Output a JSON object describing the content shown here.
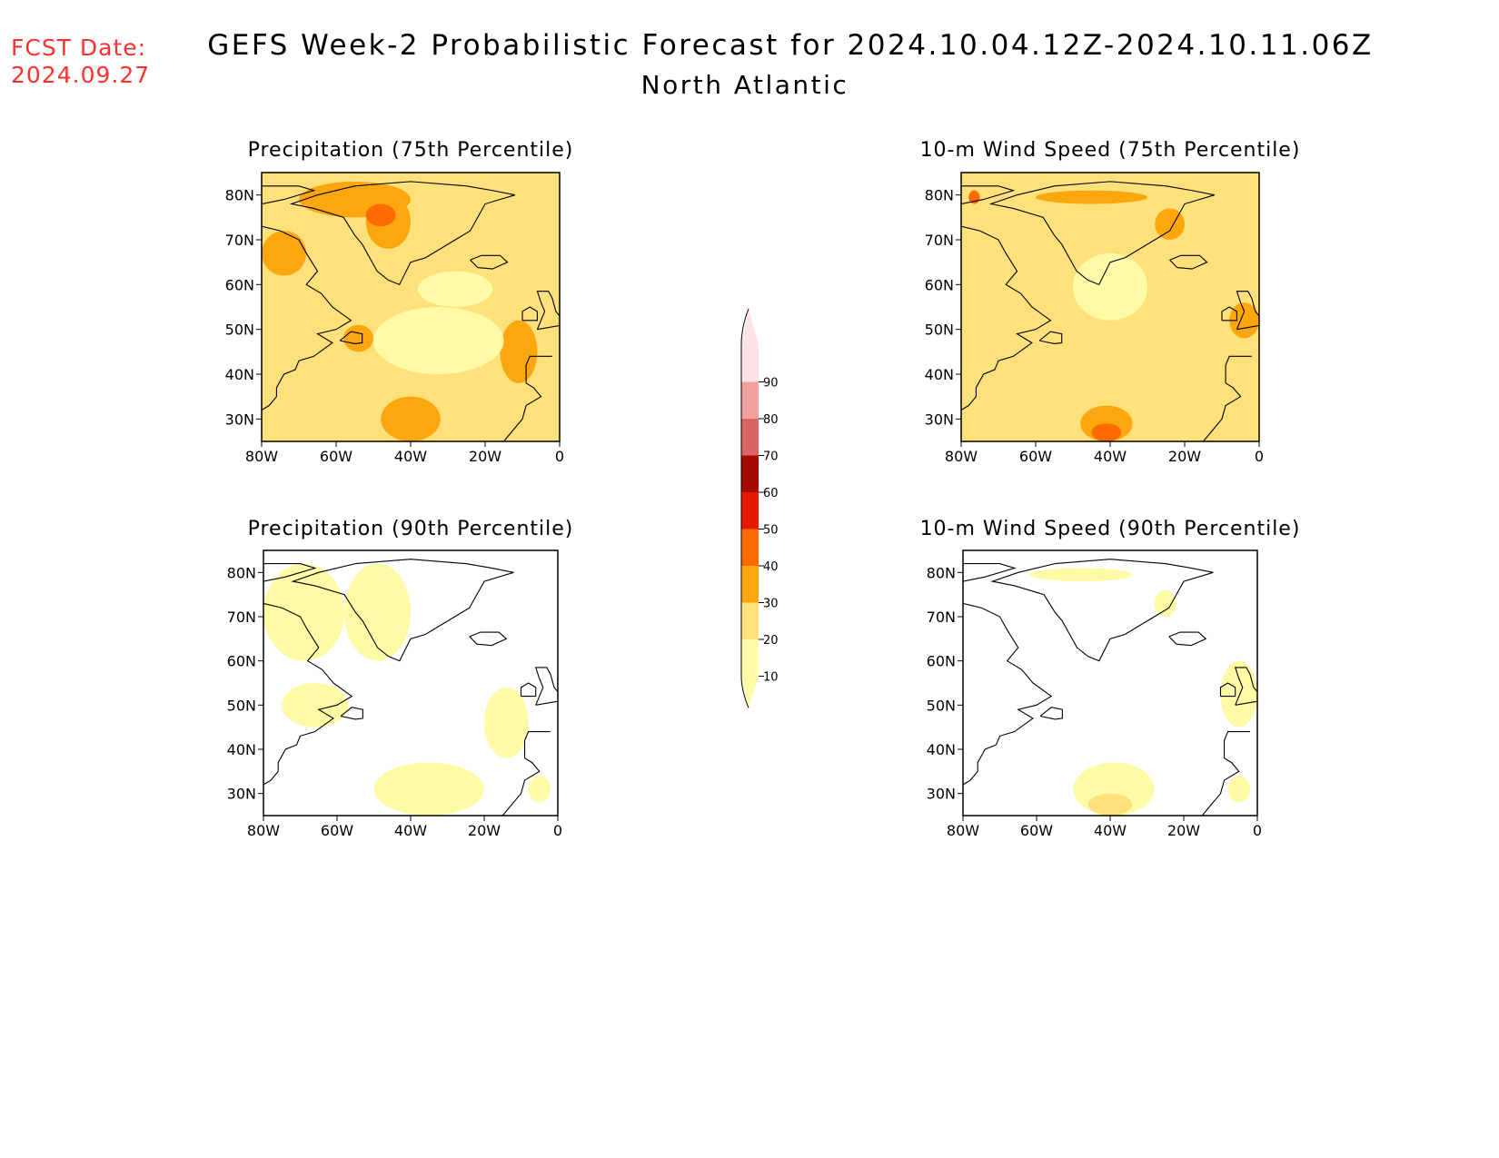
{
  "header": {
    "fcst_label": "FCST Date:",
    "fcst_date": "2024.09.27",
    "title": "GEFS Week-2 Probabilistic Forecast for 2024.10.04.12Z-2024.10.11.06Z",
    "region": "North Atlantic"
  },
  "panels": [
    {
      "title": "Precipitation (75th Percentile)",
      "field": "precip",
      "percentile": 75,
      "fill": [
        {
          "lon": -80,
          "lat": 25,
          "w": 80,
          "h": 60,
          "level": 20
        },
        {
          "lon": -70,
          "lat": 75,
          "w": 30,
          "h": 8,
          "level": 30
        },
        {
          "lon": -52,
          "lat": 68,
          "w": 12,
          "h": 12,
          "level": 30
        },
        {
          "lon": -80,
          "lat": 62,
          "w": 12,
          "h": 10,
          "level": 30
        },
        {
          "lon": -58,
          "lat": 45,
          "w": 8,
          "h": 6,
          "level": 30
        },
        {
          "lon": -48,
          "lat": 25,
          "w": 16,
          "h": 10,
          "level": 30
        },
        {
          "lon": -16,
          "lat": 38,
          "w": 10,
          "h": 14,
          "level": 30
        },
        {
          "lon": -52,
          "lat": 73,
          "w": 8,
          "h": 5,
          "level": 40
        },
        {
          "lon": -50,
          "lat": 40,
          "w": 35,
          "h": 15,
          "level": 10
        },
        {
          "lon": -38,
          "lat": 55,
          "w": 20,
          "h": 8,
          "level": 10
        }
      ]
    },
    {
      "title": "10-m Wind Speed (75th Percentile)",
      "field": "wind",
      "percentile": 75,
      "fill": [
        {
          "lon": -80,
          "lat": 25,
          "w": 80,
          "h": 60,
          "level": 20
        },
        {
          "lon": -50,
          "lat": 52,
          "w": 20,
          "h": 15,
          "level": 10
        },
        {
          "lon": -60,
          "lat": 78,
          "w": 30,
          "h": 3,
          "level": 30
        },
        {
          "lon": -28,
          "lat": 70,
          "w": 8,
          "h": 7,
          "level": 30
        },
        {
          "lon": -48,
          "lat": 25,
          "w": 14,
          "h": 8,
          "level": 30
        },
        {
          "lon": -45,
          "lat": 25,
          "w": 8,
          "h": 4,
          "level": 40
        },
        {
          "lon": -8,
          "lat": 48,
          "w": 8,
          "h": 8,
          "level": 30
        },
        {
          "lon": -78,
          "lat": 78,
          "w": 3,
          "h": 3,
          "level": 40
        }
      ]
    },
    {
      "title": "Precipitation (90th Percentile)",
      "field": "precip",
      "percentile": 90,
      "fill": [
        {
          "lon": -80,
          "lat": 60,
          "w": 22,
          "h": 22,
          "level": 10
        },
        {
          "lon": -58,
          "lat": 60,
          "w": 18,
          "h": 22,
          "level": 10
        },
        {
          "lon": -75,
          "lat": 45,
          "w": 18,
          "h": 10,
          "level": 10
        },
        {
          "lon": -50,
          "lat": 25,
          "w": 30,
          "h": 12,
          "level": 10
        },
        {
          "lon": -20,
          "lat": 38,
          "w": 12,
          "h": 16,
          "level": 10
        },
        {
          "lon": -8,
          "lat": 28,
          "w": 6,
          "h": 6,
          "level": 10
        }
      ]
    },
    {
      "title": "10-m Wind Speed (90th Percentile)",
      "field": "wind",
      "percentile": 90,
      "fill": [
        {
          "lon": -50,
          "lat": 25,
          "w": 22,
          "h": 12,
          "level": 10
        },
        {
          "lon": -46,
          "lat": 25,
          "w": 12,
          "h": 5,
          "level": 20
        },
        {
          "lon": -62,
          "lat": 78,
          "w": 28,
          "h": 3,
          "level": 10
        },
        {
          "lon": -28,
          "lat": 70,
          "w": 6,
          "h": 6,
          "level": 10
        },
        {
          "lon": -10,
          "lat": 45,
          "w": 10,
          "h": 15,
          "level": 10
        },
        {
          "lon": -8,
          "lat": 28,
          "w": 6,
          "h": 6,
          "level": 10
        }
      ]
    }
  ],
  "axes": {
    "lat_ticks": [
      "80N",
      "70N",
      "60N",
      "50N",
      "40N",
      "30N"
    ],
    "lat_values": [
      80,
      70,
      60,
      50,
      40,
      30
    ],
    "lon_ticks": [
      "80W",
      "60W",
      "40W",
      "20W",
      "0"
    ],
    "lon_values": [
      -80,
      -60,
      -40,
      -20,
      0
    ],
    "lat_range": [
      25,
      85
    ],
    "lon_range": [
      -80,
      0
    ]
  },
  "colorbar": {
    "labels": [
      "10",
      "20",
      "30",
      "40",
      "50",
      "60",
      "70",
      "80",
      "90"
    ],
    "levels": [
      10,
      20,
      30,
      40,
      50,
      60,
      70,
      80,
      90
    ],
    "colors": [
      "#fffaa5",
      "#fee17a",
      "#fda70f",
      "#fd6a00",
      "#e51b00",
      "#a50a00",
      "#d96565",
      "#f3a0a0",
      "#fde3e5"
    ]
  }
}
